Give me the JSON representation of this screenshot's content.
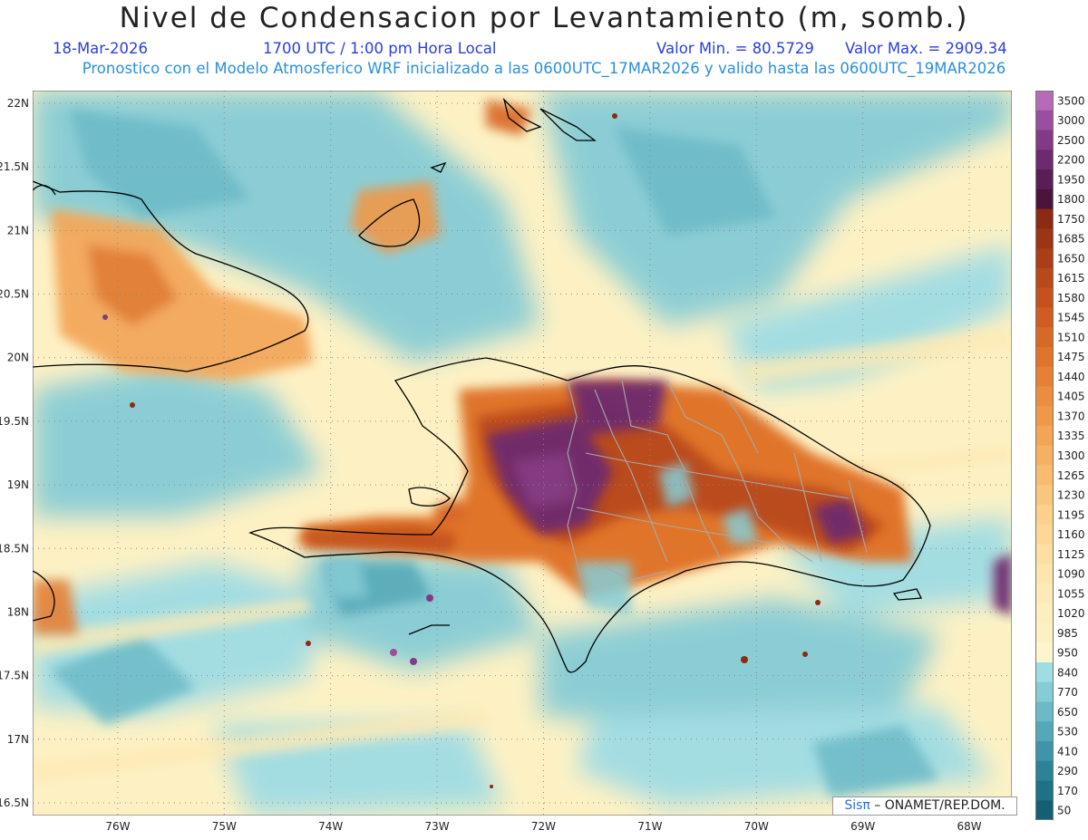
{
  "header": {
    "title": "Nivel de Condensacion por Levantamiento (m, somb.)",
    "date": "18-Mar-2026",
    "time": "1700 UTC / 1:00 pm Hora Local",
    "min_value": "Valor Min. = 80.5729",
    "max_value": "Valor Max. = 2909.34",
    "forecast_info": "Pronostico con el Modelo Atmosferico WRF inicializado a las 0600UTC_17MAR2026 y valido hasta las  0600UTC_19MAR2026"
  },
  "map": {
    "lat_labels": [
      "22N",
      "21.5N",
      "21N",
      "20.5N",
      "20N",
      "19.5N",
      "19N",
      "18.5N",
      "18N",
      "17.5N",
      "17N",
      "16.5N"
    ],
    "lon_labels": [
      "76W",
      "75W",
      "74W",
      "73W",
      "72W",
      "71W",
      "70W",
      "69W",
      "68W"
    ],
    "lat_range": [
      16.4,
      22.1
    ],
    "lon_range": [
      -76.8,
      -67.6
    ],
    "grid": true
  },
  "legend": {
    "levels": [
      "3500",
      "3000",
      "2500",
      "2200",
      "1950",
      "1800",
      "1750",
      "1685",
      "1650",
      "1615",
      "1580",
      "1545",
      "1510",
      "1475",
      "1440",
      "1405",
      "1370",
      "1335",
      "1300",
      "1265",
      "1230",
      "1195",
      "1160",
      "1125",
      "1090",
      "1055",
      "1020",
      "985",
      "950",
      "840",
      "770",
      "650",
      "530",
      "410",
      "290",
      "170",
      "50"
    ],
    "colors": [
      "#b66ab8",
      "#9a4f9e",
      "#823a86",
      "#6e2a6e",
      "#5a1e55",
      "#4a1538",
      "#8c2a14",
      "#9c3416",
      "#ab3e18",
      "#b9481b",
      "#c5521e",
      "#cf5c22",
      "#d86826",
      "#e0742c",
      "#e68034",
      "#ec8c3e",
      "#f09848",
      "#f3a454",
      "#f6b062",
      "#f8bc70",
      "#f9c67e",
      "#fad08c",
      "#fbd898",
      "#fcdfa3",
      "#fde5ad",
      "#fdeab6",
      "#fdeebd",
      "#fdf1c4",
      "#fef5cc",
      "#9fdce4",
      "#86ccd6",
      "#6cbac7",
      "#55a8b7",
      "#3f95a7",
      "#2d8396",
      "#1f7185",
      "#146073"
    ]
  },
  "credit": {
    "logo": "Sisπ",
    "text": " – ONAMET/REP.DOM."
  }
}
